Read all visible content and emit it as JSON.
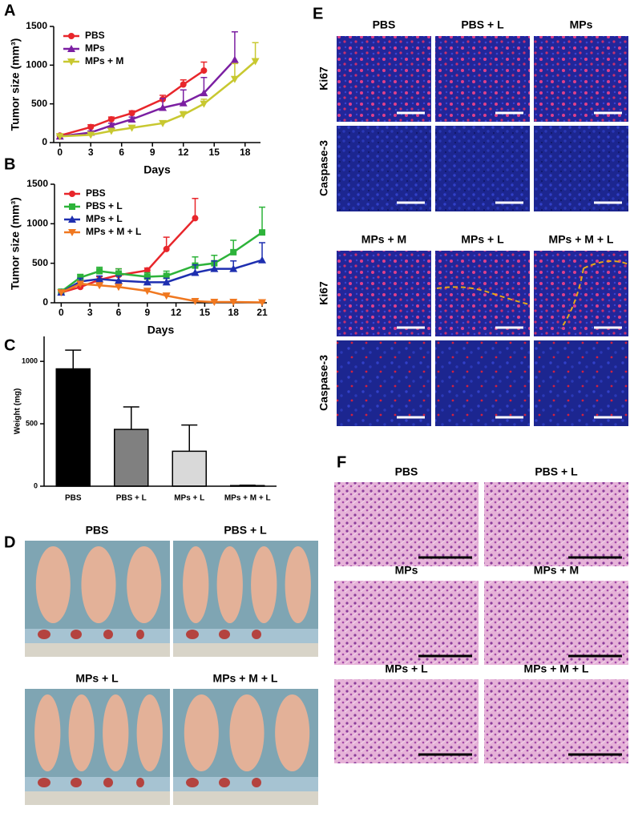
{
  "chart_data": [
    {
      "type": "line",
      "panel": "A",
      "xlabel": "Days",
      "ylabel": "Tumor size (mm³)",
      "xlim": [
        -0.6,
        19.5
      ],
      "xticks": [
        0,
        3,
        6,
        9,
        12,
        15,
        18
      ],
      "ylim": [
        0,
        1500
      ],
      "yticks": [
        0,
        500,
        1000,
        1500
      ],
      "legend": "upper left",
      "series": [
        {
          "name": "PBS",
          "color": "#e8262b",
          "marker": "circle",
          "x": [
            0,
            3,
            5,
            7,
            10,
            12,
            14
          ],
          "values": [
            90,
            200,
            300,
            380,
            560,
            750,
            930
          ],
          "errors": [
            20,
            30,
            30,
            30,
            50,
            60,
            110
          ]
        },
        {
          "name": "MPs",
          "color": "#7b1fa2",
          "marker": "triangle",
          "x": [
            0,
            3,
            5,
            7,
            10,
            12,
            14,
            17
          ],
          "values": [
            80,
            130,
            220,
            300,
            450,
            510,
            640,
            1070
          ],
          "errors": [
            10,
            20,
            30,
            30,
            120,
            170,
            200,
            360
          ]
        },
        {
          "name": "MPs + M",
          "color": "#c8c830",
          "marker": "triangle-down",
          "x": [
            0,
            3,
            5,
            7,
            10,
            12,
            14,
            17,
            19
          ],
          "values": [
            80,
            100,
            150,
            190,
            250,
            360,
            500,
            820,
            1050
          ],
          "errors": [
            10,
            10,
            20,
            20,
            30,
            40,
            60,
            200,
            240
          ]
        }
      ]
    },
    {
      "type": "line",
      "panel": "B",
      "xlabel": "Days",
      "ylabel": "Tumor size (mm³)",
      "xlim": [
        -0.7,
        21.5
      ],
      "xticks": [
        0,
        3,
        6,
        9,
        12,
        15,
        18,
        21
      ],
      "ylim": [
        0,
        1500
      ],
      "yticks": [
        0,
        500,
        1000,
        1500
      ],
      "legend": "upper left",
      "series": [
        {
          "name": "PBS",
          "color": "#e8262b",
          "marker": "circle",
          "x": [
            0,
            2,
            4,
            6,
            9,
            11,
            14
          ],
          "values": [
            130,
            200,
            290,
            350,
            410,
            680,
            1070
          ],
          "errors": [
            20,
            40,
            40,
            80,
            30,
            150,
            250
          ]
        },
        {
          "name": "PBS + L",
          "color": "#2db33a",
          "marker": "square",
          "x": [
            0,
            2,
            4,
            6,
            9,
            11,
            14,
            16,
            18,
            21
          ],
          "values": [
            140,
            320,
            400,
            370,
            330,
            340,
            470,
            500,
            640,
            890
          ],
          "errors": [
            20,
            40,
            50,
            60,
            50,
            60,
            110,
            100,
            150,
            320
          ]
        },
        {
          "name": "MPs + L",
          "color": "#1e2fb0",
          "marker": "triangle",
          "x": [
            0,
            2,
            4,
            6,
            9,
            11,
            14,
            16,
            18,
            21
          ],
          "values": [
            130,
            270,
            300,
            280,
            260,
            260,
            380,
            430,
            430,
            540
          ],
          "errors": [
            20,
            40,
            40,
            60,
            50,
            50,
            100,
            100,
            100,
            220
          ]
        },
        {
          "name": "MPs + M + L",
          "color": "#f07820",
          "marker": "triangle-down",
          "x": [
            0,
            2,
            4,
            6,
            9,
            11,
            14,
            16,
            18,
            21
          ],
          "values": [
            130,
            240,
            220,
            200,
            150,
            90,
            20,
            10,
            10,
            5
          ],
          "errors": [
            20,
            30,
            20,
            20,
            20,
            20,
            10,
            10,
            10,
            5
          ]
        }
      ]
    },
    {
      "type": "bar",
      "panel": "C",
      "ylabel": "Weight (mg)",
      "categories": [
        "PBS",
        "PBS + L",
        "MPs + L",
        "MPs + M + L"
      ],
      "values": [
        940,
        455,
        280,
        5
      ],
      "errors": [
        150,
        180,
        210,
        3
      ],
      "colors": [
        "#000000",
        "#808080",
        "#d9d9d9",
        "#ffffff"
      ],
      "ylim": [
        0,
        1200
      ],
      "yticks": [
        0,
        500,
        1000
      ]
    }
  ],
  "panel_d": {
    "panel": "D",
    "top": [
      "PBS",
      "PBS + L"
    ],
    "bottom": [
      "MPs + L",
      "MPs + M + L"
    ]
  },
  "panel_e": {
    "panel": "E",
    "top_columns": [
      "PBS",
      "PBS + L",
      "MPs"
    ],
    "bottom_columns": [
      "MPs + M",
      "MPs + L",
      "MPs + M + L"
    ],
    "rows": [
      "Ki67",
      "Caspase-3"
    ]
  },
  "panel_f": {
    "panel": "F",
    "labels": [
      "PBS",
      "PBS + L",
      "MPs",
      "MPs + M",
      "MPs + L",
      "MPs + M + L"
    ]
  }
}
